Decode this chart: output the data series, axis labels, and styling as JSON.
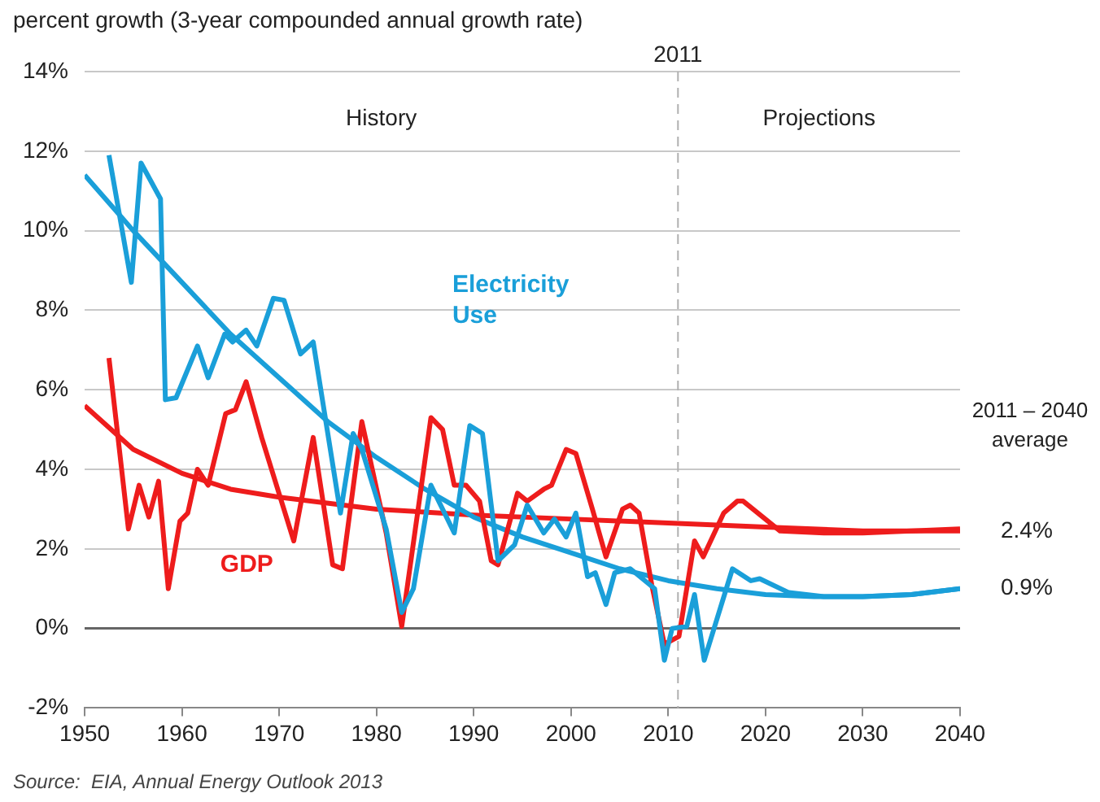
{
  "chart_data": {
    "type": "line",
    "ylabel": "percent growth (3-year compounded annual growth rate)",
    "xlim": [
      1950,
      2040
    ],
    "ylim": [
      -2,
      14
    ],
    "xticks": [
      1950,
      1960,
      1970,
      1980,
      1990,
      2000,
      2010,
      2020,
      2030,
      2040
    ],
    "yticks": [
      {
        "value": -2,
        "label": "-2%"
      },
      {
        "value": 0,
        "label": "0%"
      },
      {
        "value": 2,
        "label": "2%"
      },
      {
        "value": 4,
        "label": "4%"
      },
      {
        "value": 6,
        "label": "6%"
      },
      {
        "value": 8,
        "label": "8%"
      },
      {
        "value": 10,
        "label": "10%"
      },
      {
        "value": 12,
        "label": "12%"
      },
      {
        "value": 14,
        "label": "14%"
      }
    ],
    "grid": "y",
    "legend": false,
    "marker": "none",
    "line_style": "solid",
    "series": [
      {
        "name": "Electricity Use",
        "color": "#1a9fd9",
        "x": [
          1952.5,
          1954.8,
          1955.8,
          1957.8,
          1958.3,
          1959.4,
          1961.6,
          1962.7,
          1964.4,
          1965.2,
          1966.6,
          1967.7,
          1969.4,
          1970.5,
          1972.2,
          1973.5,
          1976.3,
          1977.6,
          1978.5,
          1981,
          1982.6,
          1983.8,
          1985.6,
          1988,
          1989.6,
          1990.9,
          1992.5,
          1994.2,
          1995.5,
          1997.2,
          1998.3,
          1999.5,
          2000.5,
          2001.7,
          2002.5,
          2003.6,
          2004.5,
          2006.1,
          2007.1,
          2008.6,
          2009.6,
          2010.4,
          2011.9,
          2012.7,
          2013.7,
          2016.6,
          2018.5,
          2019.4,
          2022.4,
          2026,
          2030,
          2035,
          2040
        ],
        "values": [
          11.9,
          8.7,
          11.7,
          10.8,
          5.75,
          5.8,
          7.1,
          6.3,
          7.4,
          7.2,
          7.5,
          7.1,
          8.3,
          8.25,
          6.9,
          7.2,
          2.9,
          4.9,
          4.5,
          2.5,
          0.4,
          1.0,
          3.6,
          2.4,
          5.1,
          4.9,
          1.7,
          2.1,
          3.1,
          2.4,
          2.75,
          2.3,
          2.9,
          1.3,
          1.4,
          0.6,
          1.4,
          1.5,
          1.3,
          1.0,
          -0.8,
          0.0,
          0.05,
          0.85,
          -0.8,
          1.5,
          1.2,
          1.25,
          0.9,
          0.8,
          0.8,
          0.85,
          1.0
        ]
      },
      {
        "name": "GDP",
        "color": "#ee1c1c",
        "x": [
          1952.5,
          1954.5,
          1955.6,
          1956.6,
          1957.6,
          1958.6,
          1959.8,
          1960.6,
          1961.6,
          1962.7,
          1964.5,
          1965.5,
          1966.6,
          1968.2,
          1971.5,
          1973.5,
          1975.5,
          1976.5,
          1978.5,
          1981,
          1982.6,
          1985.6,
          1986.8,
          1988,
          1989.2,
          1990.6,
          1991.8,
          1992.5,
          1994.5,
          1995.5,
          1997.2,
          1998,
          1999.5,
          2000.5,
          2002.2,
          2003.6,
          2005.3,
          2006.1,
          2007,
          2008.3,
          2009.6,
          2011.1,
          2012.7,
          2013.6,
          2015.7,
          2017.1,
          2017.7,
          2021.5,
          2026,
          2030,
          2035,
          2040
        ],
        "values": [
          6.8,
          2.5,
          3.6,
          2.8,
          3.7,
          1.0,
          2.7,
          2.9,
          4.0,
          3.6,
          5.4,
          5.5,
          6.2,
          4.8,
          2.2,
          4.8,
          1.6,
          1.5,
          5.2,
          2.4,
          0.05,
          5.3,
          5.0,
          3.6,
          3.6,
          3.2,
          1.7,
          1.6,
          3.4,
          3.2,
          3.5,
          3.6,
          4.5,
          4.4,
          3.0,
          1.8,
          3.0,
          3.1,
          2.9,
          1.1,
          -0.4,
          -0.2,
          2.2,
          1.8,
          2.9,
          3.2,
          3.2,
          2.45,
          2.4,
          2.4,
          2.45,
          2.5
        ]
      },
      {
        "color": "#1a9fd9",
        "x": [
          1950,
          1955,
          1960,
          1965,
          1970,
          1975,
          1980,
          1985,
          1990,
          1995,
          2000,
          2005,
          2010,
          2015,
          2020,
          2025,
          2030,
          2035,
          2040
        ],
        "values": [
          11.4,
          10.0,
          8.7,
          7.4,
          6.3,
          5.2,
          4.3,
          3.5,
          2.8,
          2.3,
          1.9,
          1.5,
          1.2,
          1.0,
          0.85,
          0.8,
          0.8,
          0.85,
          1.0
        ]
      },
      {
        "color": "#ee1c1c",
        "x": [
          1950,
          1955,
          1960,
          1965,
          1970,
          1980,
          1990,
          2000,
          2010,
          2020,
          2030,
          2040
        ],
        "values": [
          5.6,
          4.5,
          3.9,
          3.5,
          3.3,
          3.0,
          2.85,
          2.75,
          2.65,
          2.55,
          2.45,
          2.45
        ]
      }
    ],
    "ref_lines": [
      {
        "axis": "x",
        "value": 2011,
        "label": "2011",
        "color": "#b0b0b0",
        "line_style": "dashed"
      }
    ],
    "annotations": [
      "History",
      "Projections",
      "2011 – 2040 average",
      "2.4%",
      "0.9%",
      "Source:  EIA, Annual Energy Outlook 2013"
    ]
  }
}
